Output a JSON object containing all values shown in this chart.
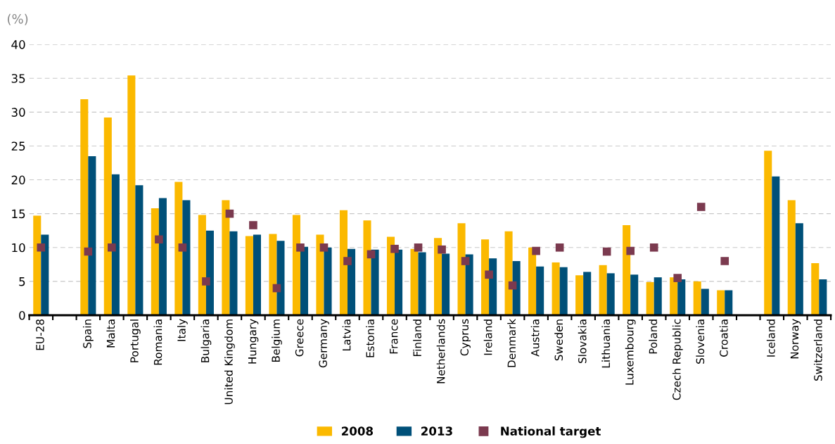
{
  "chart_data": {
    "type": "bar",
    "ylabel": "(%)",
    "categories": [
      "EU-28",
      null,
      "Spain",
      "Malta",
      "Portugal",
      "Romania",
      "Italy",
      "Bulgaria",
      "United Kingdom",
      "Hungary",
      "Belgium",
      "Greece",
      "Germany",
      "Latvia",
      "Estonia",
      "France",
      "Finland",
      "Netherlands",
      "Cyprus",
      "Ireland",
      "Denmark",
      "Austria",
      "Sweden",
      "Slovakia",
      "Lithuania",
      "Luxembourg",
      "Poland",
      "Czech Republic",
      "Slovenia",
      "Croatia",
      null,
      "Iceland",
      "Norway",
      "Switzerland"
    ],
    "series": [
      {
        "name": "2008",
        "color": "#fbb900",
        "values": [
          14.7,
          null,
          31.9,
          29.2,
          35.4,
          15.8,
          19.7,
          14.8,
          17.0,
          11.7,
          12.0,
          14.8,
          11.9,
          15.5,
          14.0,
          11.6,
          9.8,
          11.4,
          13.6,
          11.2,
          12.4,
          10.0,
          7.8,
          5.9,
          7.4,
          13.3,
          4.9,
          5.6,
          5.0,
          3.7,
          null,
          24.3,
          17.0,
          7.7
        ]
      },
      {
        "name": "2013",
        "color": "#005079",
        "values": [
          11.9,
          null,
          23.5,
          20.8,
          19.2,
          17.3,
          17.0,
          12.5,
          12.4,
          11.9,
          11.0,
          10.1,
          10.0,
          9.8,
          9.7,
          9.7,
          9.3,
          9.1,
          9.0,
          8.4,
          8.0,
          7.2,
          7.1,
          6.4,
          6.2,
          6.0,
          5.6,
          5.3,
          3.9,
          3.7,
          null,
          20.5,
          13.6,
          5.3
        ]
      },
      {
        "name": "National target",
        "type": "scatter",
        "marker": "square",
        "color": "#7b3a4f",
        "values": [
          10,
          null,
          9.4,
          10,
          null,
          11.2,
          10,
          5,
          15,
          13.3,
          4,
          10,
          10,
          8,
          9,
          9.8,
          10,
          9.7,
          8,
          6,
          4.4,
          9.5,
          10,
          null,
          9.4,
          9.5,
          10,
          5.5,
          16,
          8,
          null,
          null,
          null,
          null
        ]
      }
    ],
    "ylim": [
      0,
      40
    ],
    "yticks": [
      0,
      5,
      10,
      15,
      20,
      25,
      30,
      35,
      40
    ],
    "grid": "y",
    "legend": "bottom"
  }
}
